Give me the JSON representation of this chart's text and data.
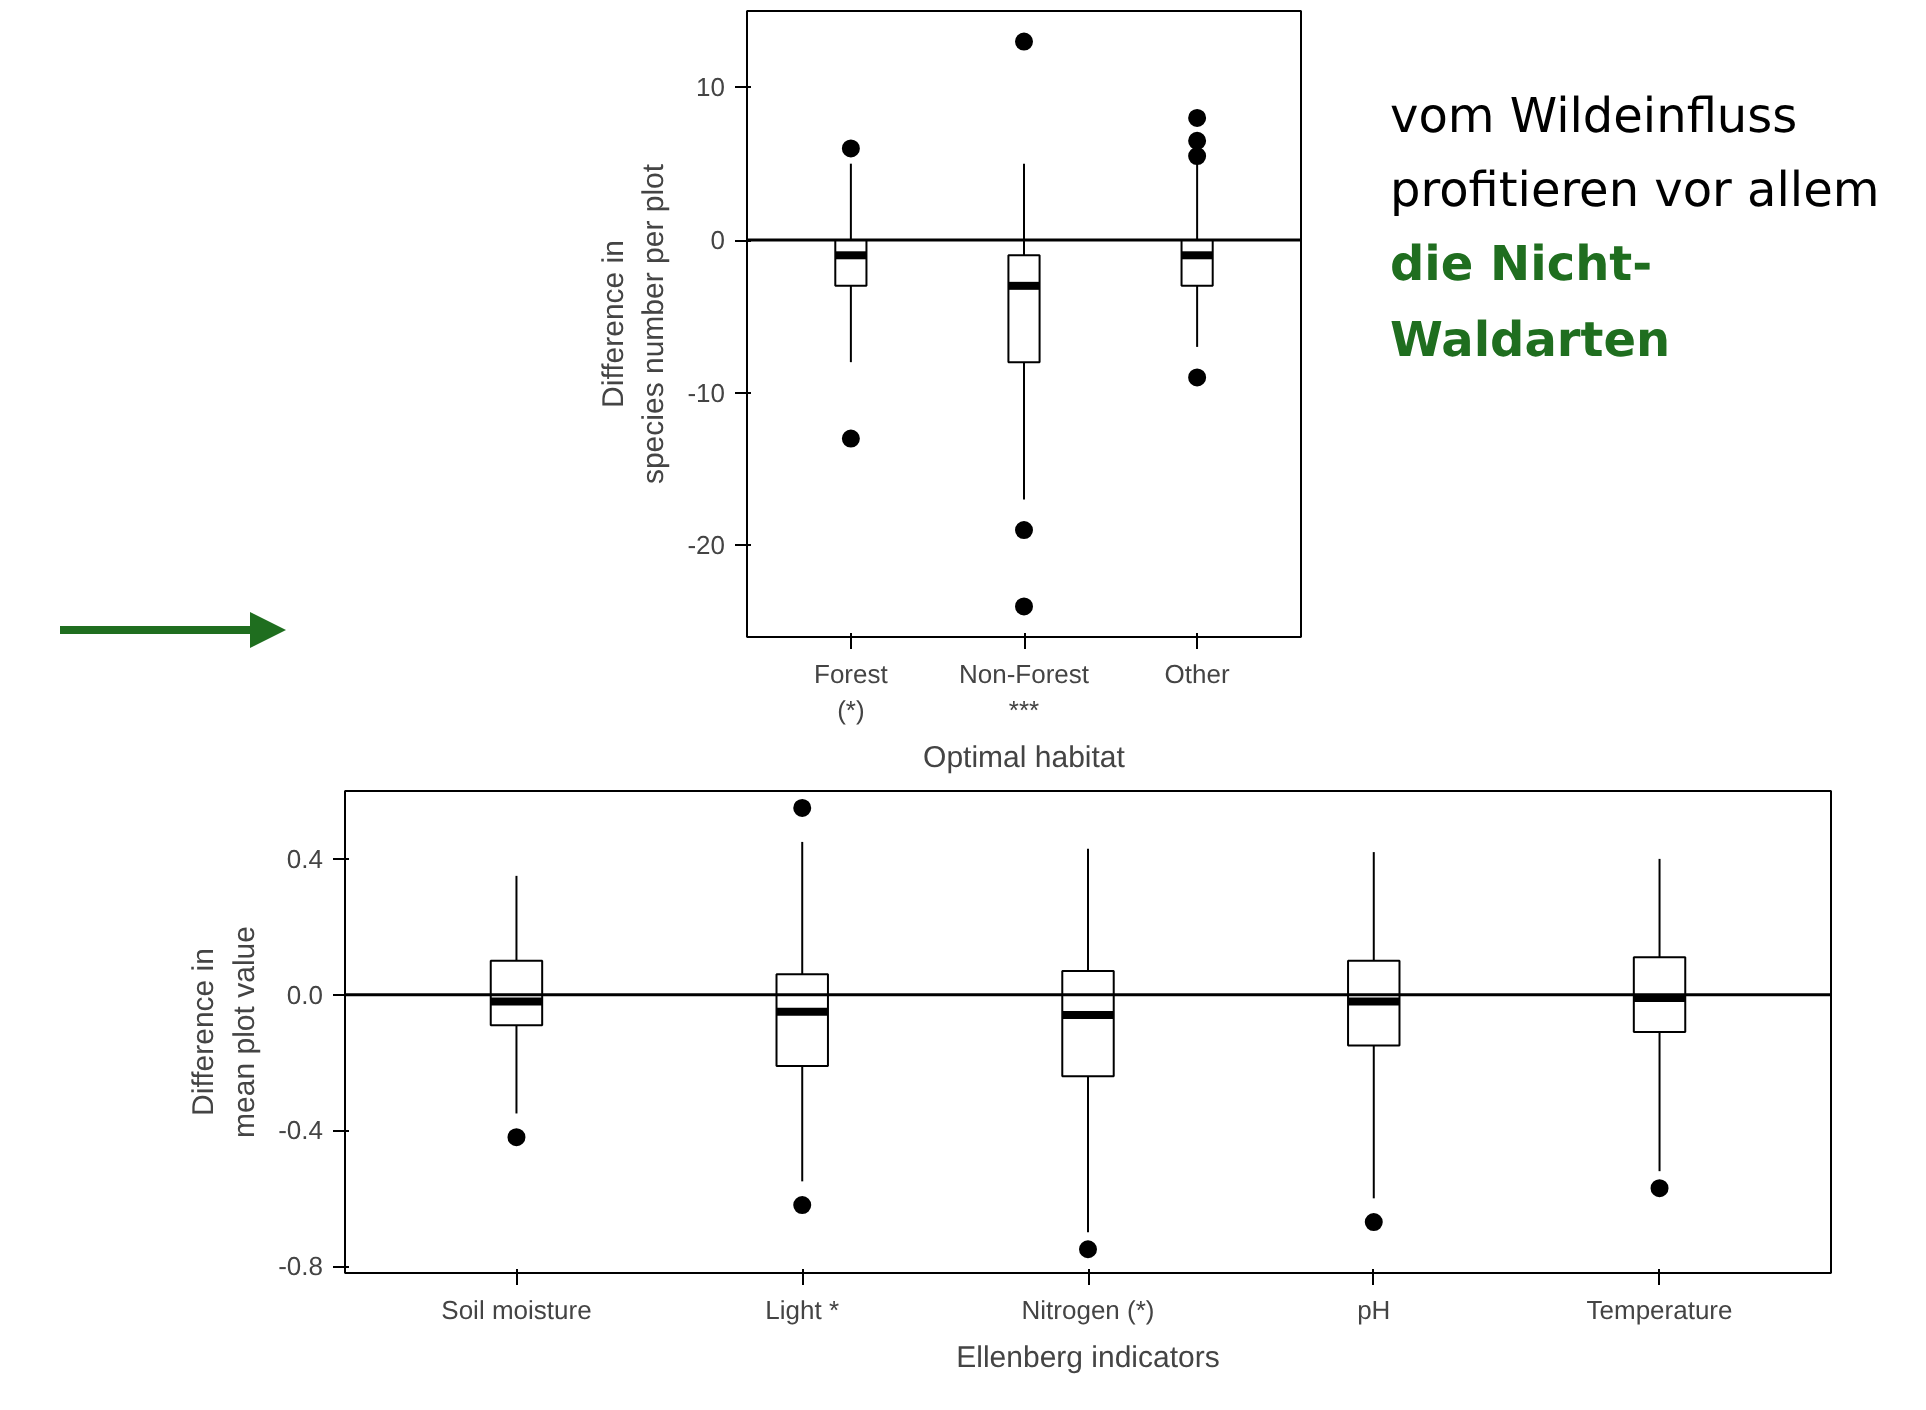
{
  "chart_data": [
    {
      "type": "box",
      "xlabel": "Optimal habitat",
      "ylabel": "Difference in\nspecies number per plot",
      "categories": [
        "Forest\n(*)",
        "Non-Forest\n***",
        "Other"
      ],
      "boxes": [
        {
          "low": -8,
          "q1": -3,
          "median": -1,
          "q3": 0,
          "high": 5,
          "outliers": [
            6,
            -13
          ]
        },
        {
          "low": -17,
          "q1": -8,
          "median": -3,
          "q3": -1,
          "high": 5,
          "outliers": [
            13,
            -19,
            -24
          ]
        },
        {
          "low": -7,
          "q1": -3,
          "median": -1,
          "q3": 0,
          "high": 5,
          "outliers": [
            5.5,
            6.5,
            8,
            -9
          ]
        }
      ],
      "ylim": [
        -26,
        15
      ],
      "yticks": [
        -20,
        -10,
        0,
        10
      ],
      "grid": false,
      "ref_lines": [
        {
          "axis": "y",
          "value": 0
        }
      ],
      "annotations": [
        "vom Wildeinfluss profitieren vor allem",
        "die Nicht-Waldarten"
      ]
    },
    {
      "type": "box",
      "xlabel": "Ellenberg indicators",
      "ylabel": "Difference in\nmean plot value",
      "categories": [
        "Soil moisture",
        "Light *",
        "Nitrogen (*)",
        "pH",
        "Temperature"
      ],
      "boxes": [
        {
          "low": -0.35,
          "q1": -0.09,
          "median": -0.02,
          "q3": 0.1,
          "high": 0.35,
          "outliers": [
            -0.42
          ]
        },
        {
          "low": -0.55,
          "q1": -0.21,
          "median": -0.05,
          "q3": 0.06,
          "high": 0.45,
          "outliers": [
            0.55,
            -0.62
          ]
        },
        {
          "low": -0.7,
          "q1": -0.24,
          "median": -0.06,
          "q3": 0.07,
          "high": 0.43,
          "outliers": [
            -0.75
          ]
        },
        {
          "low": -0.6,
          "q1": -0.15,
          "median": -0.02,
          "q3": 0.1,
          "high": 0.42,
          "outliers": [
            -0.67
          ]
        },
        {
          "low": -0.52,
          "q1": -0.11,
          "median": -0.01,
          "q3": 0.11,
          "high": 0.4,
          "outliers": [
            -0.57
          ]
        }
      ],
      "ylim": [
        -0.82,
        0.6
      ],
      "yticks": [
        0.4,
        {
          "value": 0,
          "label": "0.0"
        },
        -0.4,
        -0.8
      ],
      "grid": false,
      "ref_lines": [
        {
          "axis": "y",
          "value": 0
        }
      ]
    }
  ]
}
